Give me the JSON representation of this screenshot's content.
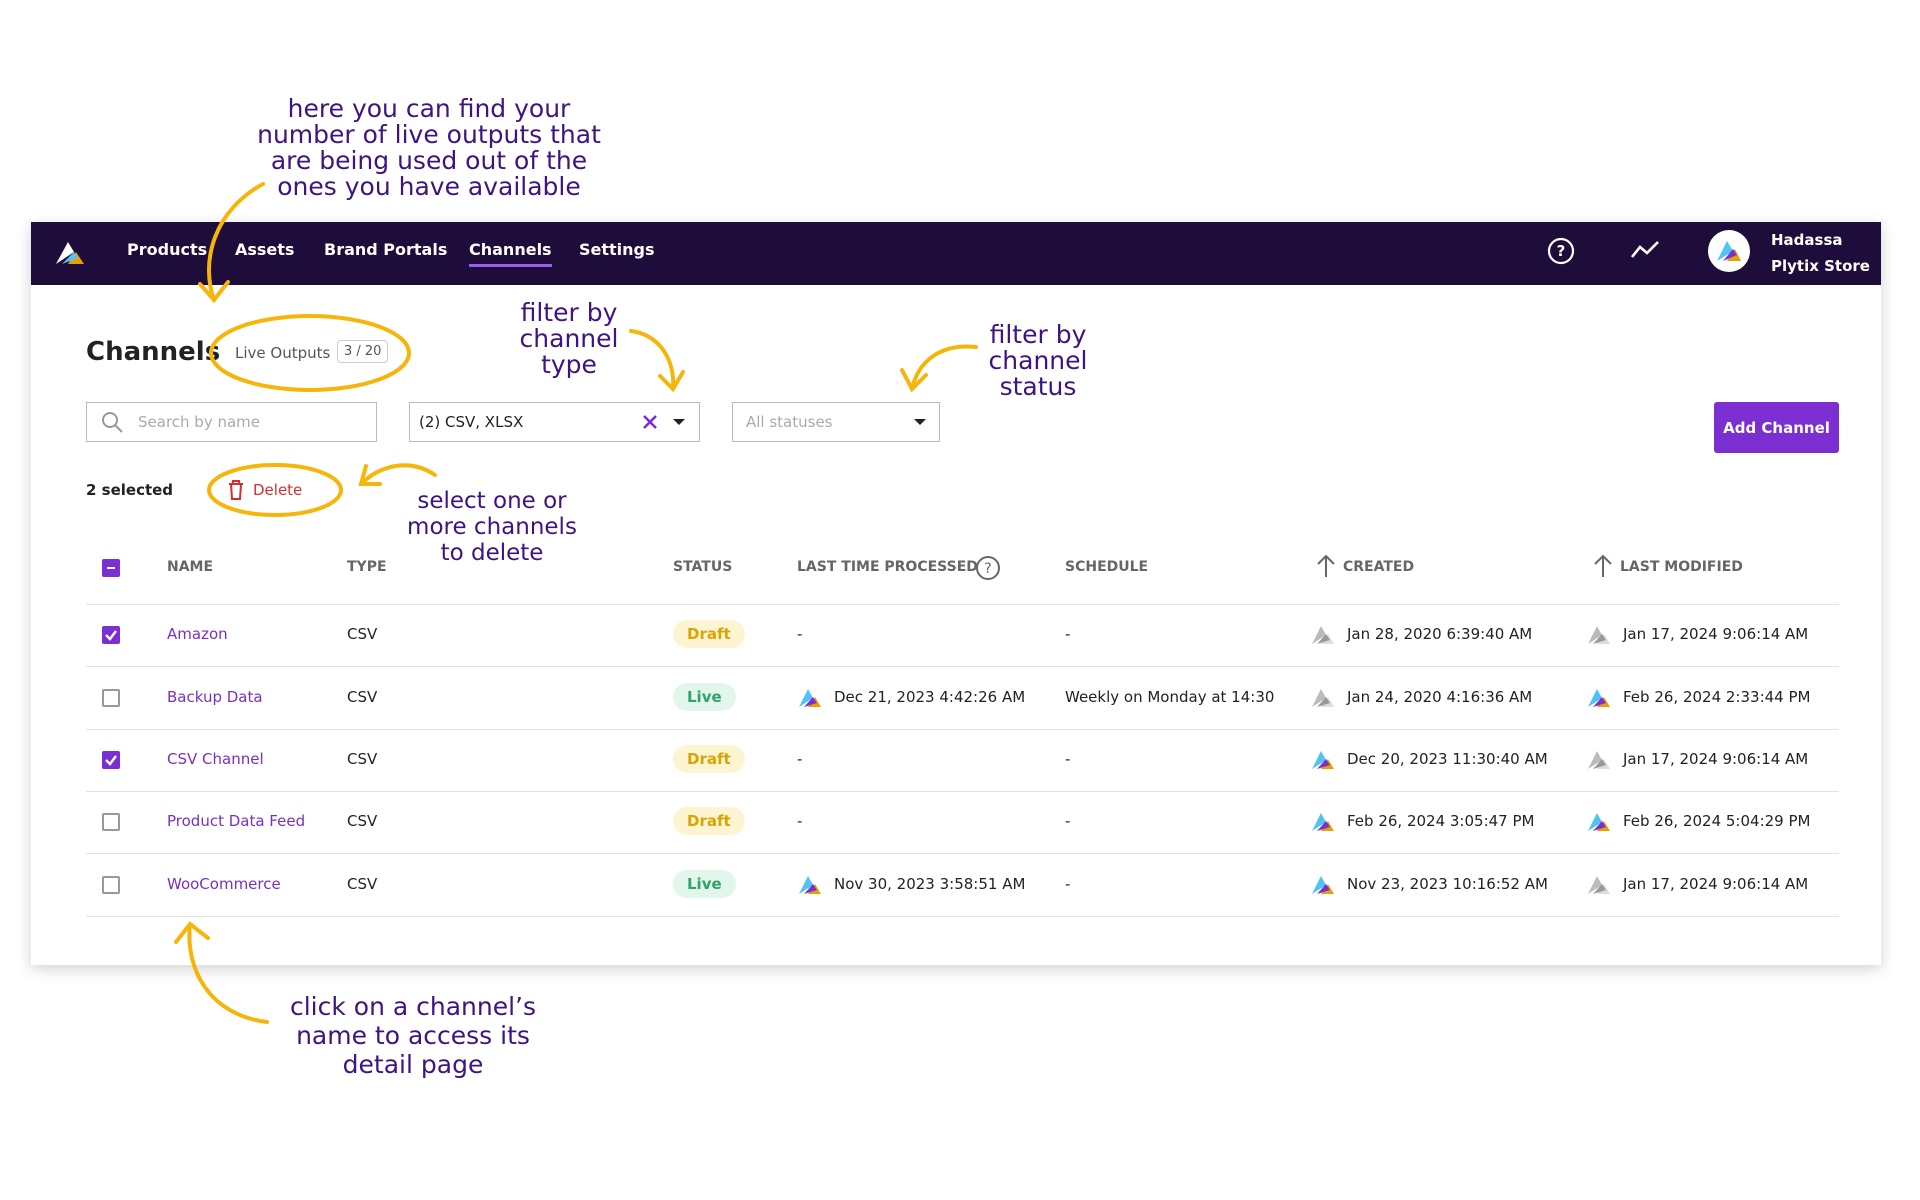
{
  "nav": {
    "items": [
      "Products",
      "Assets",
      "Brand Portals",
      "Channels",
      "Settings"
    ],
    "active": "Channels",
    "user_name": "Hadassa",
    "store_name": "Plytix Store"
  },
  "header": {
    "title": "Channels",
    "live_outputs_label": "Live Outputs",
    "live_outputs_count": "3 / 20"
  },
  "filters": {
    "search_placeholder": "Search by name",
    "type_value": "(2) CSV, XLSX",
    "status_placeholder": "All statuses"
  },
  "add_button": "Add Channel",
  "selection": {
    "count_label": "2 selected",
    "delete_label": "Delete"
  },
  "table": {
    "columns": [
      "NAME",
      "TYPE",
      "STATUS",
      "LAST TIME PROCESSED",
      "SCHEDULE",
      "CREATED",
      "LAST MODIFIED"
    ],
    "rows": [
      {
        "checked": true,
        "name": "Amazon",
        "type": "CSV",
        "status": "Draft",
        "last_processed": "-",
        "processed_icon": "none",
        "schedule": "-",
        "created": "Jan 28, 2020 6:39:40 AM",
        "created_icon": "gray",
        "last_modified": "Jan 17, 2024 9:06:14 AM",
        "modified_icon": "gray"
      },
      {
        "checked": false,
        "name": "Backup Data",
        "type": "CSV",
        "status": "Live",
        "last_processed": "Dec 21, 2023 4:42:26 AM",
        "processed_icon": "color",
        "schedule": "Weekly on Monday at 14:30",
        "created": "Jan 24, 2020 4:16:36 AM",
        "created_icon": "gray",
        "last_modified": "Feb 26, 2024 2:33:44 PM",
        "modified_icon": "color"
      },
      {
        "checked": true,
        "name": "CSV Channel",
        "type": "CSV",
        "status": "Draft",
        "last_processed": "-",
        "processed_icon": "none",
        "schedule": "-",
        "created": "Dec 20, 2023 11:30:40 AM",
        "created_icon": "color",
        "last_modified": "Jan 17, 2024 9:06:14 AM",
        "modified_icon": "gray"
      },
      {
        "checked": false,
        "name": "Product Data Feed",
        "type": "CSV",
        "status": "Draft",
        "last_processed": "-",
        "processed_icon": "none",
        "schedule": "-",
        "created": "Feb 26, 2024 3:05:47 PM",
        "created_icon": "color",
        "last_modified": "Feb 26, 2024 5:04:29 PM",
        "modified_icon": "color"
      },
      {
        "checked": false,
        "name": "WooCommerce",
        "type": "CSV",
        "status": "Live",
        "last_processed": "Nov 30, 2023 3:58:51 AM",
        "processed_icon": "color",
        "schedule": "-",
        "created": "Nov 23, 2023 10:16:52 AM",
        "created_icon": "color",
        "last_modified": "Jan 17, 2024 9:06:14 AM",
        "modified_icon": "gray"
      }
    ]
  },
  "annotations": {
    "live_outputs": "here you can find your number of live outputs that are being used out of the ones you have available",
    "type_filter": "filter by channel type",
    "status_filter": "filter by channel status",
    "delete": "select one or more channels to delete",
    "name_click": "click on a channel’s name to access its detail page"
  }
}
